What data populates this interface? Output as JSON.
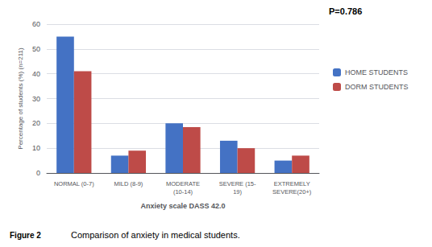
{
  "chart_data": {
    "type": "bar",
    "categories": [
      "NORMAL (0-7)",
      "MILD (8-9)",
      "MODERATE\n(10-14)",
      "SEVERE (15-\n19)",
      "EXTREMELY\nSEVERE(20+)"
    ],
    "series": [
      {
        "name": "HOME STUDENTS",
        "color": "#4472c4",
        "values": [
          55,
          7,
          20,
          13,
          5
        ]
      },
      {
        "name": "DORM STUDENTS",
        "color": "#be4b48",
        "values": [
          41,
          9,
          18.5,
          10,
          7
        ]
      }
    ],
    "xlabel": "Anxiety scale DASS 42.0",
    "ylabel": "Percentage of students (%) (n=211)",
    "ylim": [
      0,
      60
    ],
    "yticks": [
      0,
      10,
      20,
      30,
      40,
      50,
      60
    ],
    "grid": true,
    "legend": "right",
    "annotations": [
      "P=0.786",
      "Figure 2",
      "Comparison of anxiety in medical students."
    ]
  }
}
